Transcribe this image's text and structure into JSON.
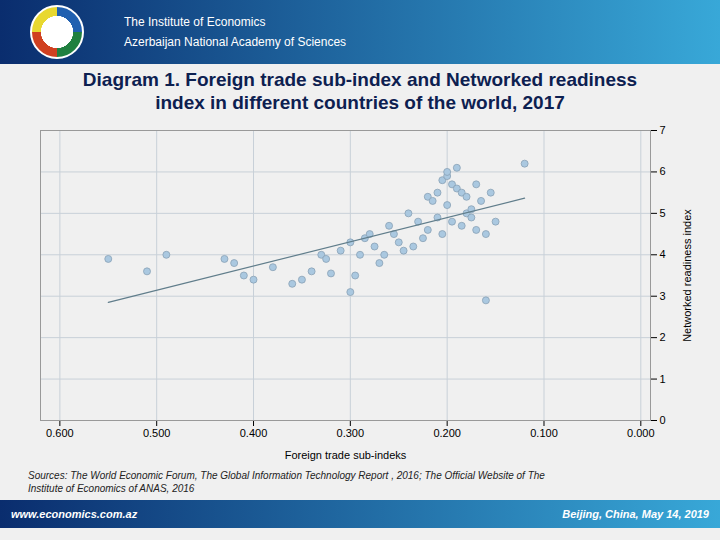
{
  "chart_data": {
    "type": "scatter",
    "title": "Diagram 1. Foreign trade sub-index and Networked readiness\nindex in different countries of the world, 2017",
    "xlabel": "Foreign trade sub-indeks",
    "ylabel": "Networked readiness index",
    "annotations": [
      "The Institute of Economics",
      "Azerbaijan National Academy of Sciences",
      "www.economics.com.az",
      "Beijing, China, May 14, 2019",
      "Sources: The World Economic Forum, The Global Information Technology Report , 2016; The Official Website of The\nInstitute of Economics of ANAS, 2016"
    ],
    "xlim": [
      0.62,
      -0.01
    ],
    "ylim": [
      0,
      7
    ],
    "xticks": [
      {
        "value": 0.6,
        "label": "0.600"
      },
      {
        "value": 0.5,
        "label": "0.500"
      },
      {
        "value": 0.4,
        "label": "0.400"
      },
      {
        "value": 0.3,
        "label": "0.300"
      },
      {
        "value": 0.2,
        "label": "0.200"
      },
      {
        "value": 0.1,
        "label": "0.100"
      },
      {
        "value": 0.0,
        "label": "0.000"
      }
    ],
    "yticks": [
      0,
      1,
      2,
      3,
      4,
      5,
      6,
      7
    ],
    "grid": true,
    "x": [
      0.55,
      0.51,
      0.49,
      0.43,
      0.42,
      0.41,
      0.4,
      0.38,
      0.36,
      0.35,
      0.34,
      0.33,
      0.325,
      0.32,
      0.31,
      0.3,
      0.3,
      0.295,
      0.29,
      0.285,
      0.28,
      0.275,
      0.27,
      0.265,
      0.26,
      0.255,
      0.25,
      0.245,
      0.24,
      0.235,
      0.23,
      0.225,
      0.22,
      0.22,
      0.215,
      0.21,
      0.21,
      0.205,
      0.205,
      0.2,
      0.2,
      0.2,
      0.195,
      0.195,
      0.19,
      0.19,
      0.185,
      0.185,
      0.18,
      0.18,
      0.175,
      0.175,
      0.17,
      0.17,
      0.165,
      0.16,
      0.16,
      0.155,
      0.15,
      0.12
    ],
    "series": [
      {
        "type": "scatter",
        "color": "#aac8e0",
        "marker": "circle",
        "values": [
          3.9,
          3.6,
          4.0,
          3.9,
          3.8,
          3.5,
          3.4,
          3.7,
          3.3,
          3.4,
          3.6,
          4.0,
          3.9,
          3.55,
          4.1,
          4.3,
          3.1,
          3.5,
          4.0,
          4.4,
          4.5,
          4.2,
          3.8,
          4.0,
          4.7,
          4.5,
          4.3,
          4.1,
          5.0,
          4.2,
          4.8,
          4.4,
          5.4,
          4.6,
          5.3,
          4.9,
          5.5,
          5.8,
          4.5,
          5.9,
          5.2,
          6.0,
          5.7,
          4.8,
          5.6,
          6.1,
          5.5,
          4.7,
          5.0,
          5.4,
          5.1,
          4.9,
          5.7,
          4.6,
          5.3,
          4.5,
          2.9,
          5.5,
          4.8,
          6.2
        ]
      },
      {
        "type": "regression",
        "color": "#607d8b",
        "line_style": "solid"
      }
    ]
  }
}
